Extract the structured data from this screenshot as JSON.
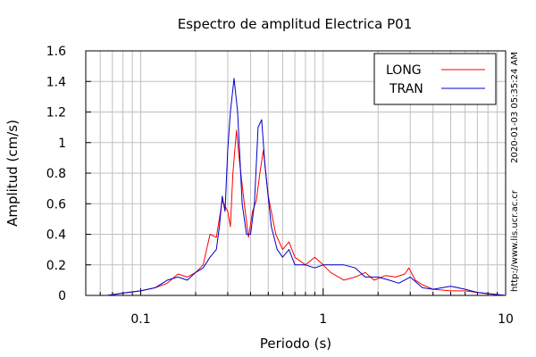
{
  "chart_data": {
    "type": "line",
    "title": "Espectro de amplitud Electrica P01",
    "xlabel": "Periodo (s)",
    "ylabel": "Amplitud (cm/s)",
    "x_scale": "log",
    "xlim": [
      0.05,
      10
    ],
    "ylim": [
      0,
      1.6
    ],
    "grid": true,
    "legend_position": "top-right",
    "x_ticks": [
      {
        "value": 0.1,
        "label": "0.1"
      },
      {
        "value": 1,
        "label": "1"
      },
      {
        "value": 10,
        "label": "10"
      }
    ],
    "y_ticks": [
      {
        "value": 0,
        "label": "0"
      },
      {
        "value": 0.2,
        "label": "0.2"
      },
      {
        "value": 0.4,
        "label": "0.4"
      },
      {
        "value": 0.6,
        "label": "0.6"
      },
      {
        "value": 0.8,
        "label": "0.8"
      },
      {
        "value": 1.0,
        "label": "1"
      },
      {
        "value": 1.2,
        "label": "1.2"
      },
      {
        "value": 1.4,
        "label": "1.4"
      },
      {
        "value": 1.6,
        "label": "1.6"
      }
    ],
    "series": [
      {
        "name": "LONG",
        "color": "#ff0000",
        "points": [
          [
            0.065,
            0.0
          ],
          [
            0.075,
            0.01
          ],
          [
            0.085,
            0.02
          ],
          [
            0.1,
            0.03
          ],
          [
            0.12,
            0.05
          ],
          [
            0.14,
            0.08
          ],
          [
            0.16,
            0.14
          ],
          [
            0.18,
            0.12
          ],
          [
            0.2,
            0.15
          ],
          [
            0.22,
            0.2
          ],
          [
            0.24,
            0.4
          ],
          [
            0.26,
            0.38
          ],
          [
            0.28,
            0.62
          ],
          [
            0.3,
            0.55
          ],
          [
            0.31,
            0.45
          ],
          [
            0.32,
            0.8
          ],
          [
            0.335,
            1.08
          ],
          [
            0.35,
            0.85
          ],
          [
            0.37,
            0.6
          ],
          [
            0.39,
            0.38
          ],
          [
            0.41,
            0.55
          ],
          [
            0.43,
            0.62
          ],
          [
            0.45,
            0.8
          ],
          [
            0.47,
            0.95
          ],
          [
            0.5,
            0.65
          ],
          [
            0.55,
            0.4
          ],
          [
            0.6,
            0.3
          ],
          [
            0.65,
            0.35
          ],
          [
            0.7,
            0.25
          ],
          [
            0.8,
            0.2
          ],
          [
            0.9,
            0.25
          ],
          [
            1.0,
            0.2
          ],
          [
            1.1,
            0.15
          ],
          [
            1.3,
            0.1
          ],
          [
            1.5,
            0.12
          ],
          [
            1.7,
            0.15
          ],
          [
            1.9,
            0.1
          ],
          [
            2.2,
            0.13
          ],
          [
            2.5,
            0.12
          ],
          [
            2.8,
            0.14
          ],
          [
            2.95,
            0.18
          ],
          [
            3.2,
            0.1
          ],
          [
            3.5,
            0.07
          ],
          [
            4.0,
            0.04
          ],
          [
            5.0,
            0.03
          ],
          [
            6.0,
            0.03
          ],
          [
            8.0,
            0.01
          ],
          [
            10.0,
            0.0
          ]
        ]
      },
      {
        "name": "TRAN",
        "color": "#0000cc",
        "points": [
          [
            0.065,
            0.0
          ],
          [
            0.075,
            0.01
          ],
          [
            0.085,
            0.02
          ],
          [
            0.1,
            0.03
          ],
          [
            0.12,
            0.05
          ],
          [
            0.14,
            0.1
          ],
          [
            0.16,
            0.12
          ],
          [
            0.18,
            0.1
          ],
          [
            0.2,
            0.15
          ],
          [
            0.22,
            0.18
          ],
          [
            0.24,
            0.25
          ],
          [
            0.26,
            0.3
          ],
          [
            0.27,
            0.45
          ],
          [
            0.28,
            0.65
          ],
          [
            0.29,
            0.55
          ],
          [
            0.3,
            0.95
          ],
          [
            0.31,
            1.2
          ],
          [
            0.325,
            1.42
          ],
          [
            0.34,
            1.2
          ],
          [
            0.36,
            0.6
          ],
          [
            0.38,
            0.4
          ],
          [
            0.4,
            0.4
          ],
          [
            0.42,
            0.6
          ],
          [
            0.44,
            1.1
          ],
          [
            0.46,
            1.15
          ],
          [
            0.48,
            0.85
          ],
          [
            0.52,
            0.45
          ],
          [
            0.56,
            0.3
          ],
          [
            0.6,
            0.25
          ],
          [
            0.65,
            0.3
          ],
          [
            0.7,
            0.2
          ],
          [
            0.8,
            0.2
          ],
          [
            0.9,
            0.18
          ],
          [
            1.0,
            0.2
          ],
          [
            1.1,
            0.2
          ],
          [
            1.3,
            0.2
          ],
          [
            1.5,
            0.18
          ],
          [
            1.7,
            0.12
          ],
          [
            2.0,
            0.12
          ],
          [
            2.3,
            0.1
          ],
          [
            2.6,
            0.08
          ],
          [
            3.0,
            0.12
          ],
          [
            3.5,
            0.05
          ],
          [
            4.0,
            0.04
          ],
          [
            5.0,
            0.06
          ],
          [
            6.0,
            0.04
          ],
          [
            7.0,
            0.02
          ],
          [
            10.0,
            0.0
          ]
        ]
      }
    ]
  },
  "side_text": {
    "timestamp": "2020-01-03 05:35:24 AM",
    "url": "http://www.lis.ucr.ac.cr"
  }
}
